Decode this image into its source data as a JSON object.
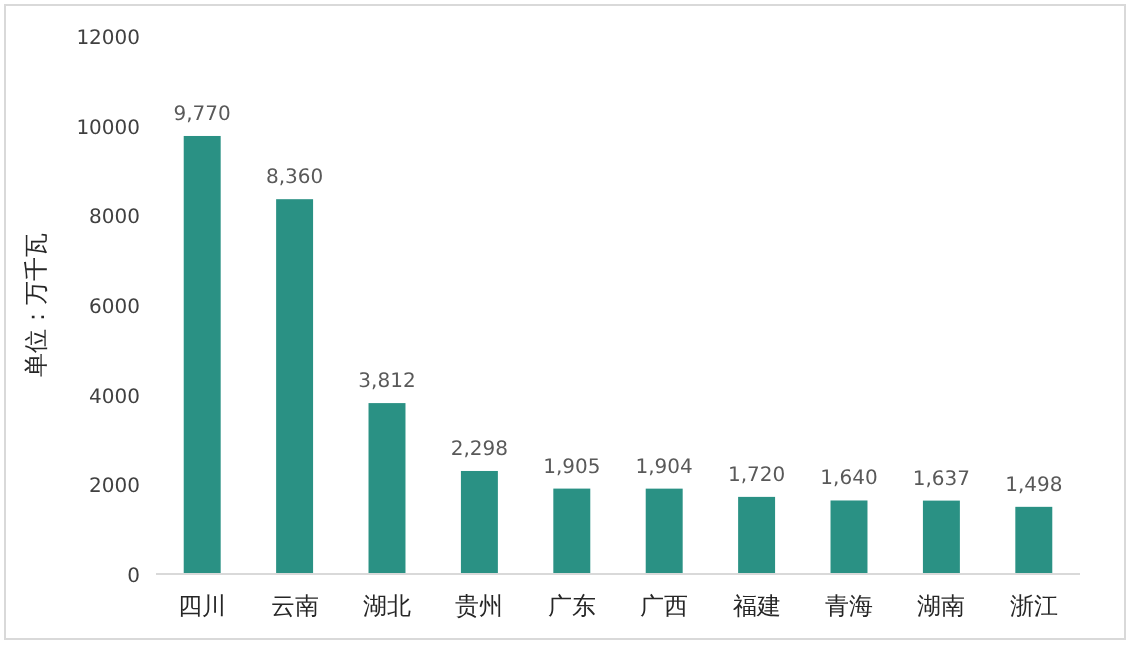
{
  "chart_data": {
    "type": "bar",
    "ylabel": "单位：万千瓦",
    "categories": [
      "四川",
      "云南",
      "湖北",
      "贵州",
      "广东",
      "广西",
      "福建",
      "青海",
      "湖南",
      "浙江"
    ],
    "values": [
      9770,
      8360,
      3812,
      2298,
      1905,
      1904,
      1720,
      1640,
      1637,
      1498
    ],
    "value_labels": [
      "9,770",
      "8,360",
      "3,812",
      "2,298",
      "1,905",
      "1,904",
      "1,720",
      "1,640",
      "1,637",
      "1,498"
    ],
    "color": "#2a9184",
    "ylim": [
      0,
      12000
    ],
    "yticks": [
      0,
      2000,
      4000,
      6000,
      8000,
      10000,
      12000
    ],
    "grid": false
  }
}
